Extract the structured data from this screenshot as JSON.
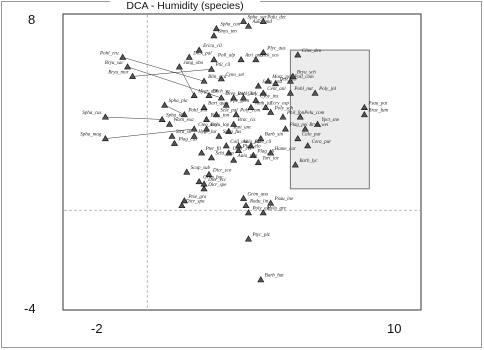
{
  "chart_data": {
    "type": "scatter",
    "title": "DCA - Humidity (species)",
    "xlabel": "",
    "ylabel": "",
    "xlim": [
      -2,
      10
    ],
    "ylim": [
      -4,
      8
    ],
    "x_ticks": [
      "-2",
      "10"
    ],
    "y_ticks": [
      "8",
      "-4"
    ],
    "reference_lines": {
      "x": 0,
      "y": 0
    },
    "highlight_box": {
      "x": [
        5.8,
        9.0
      ],
      "y": [
        0.9,
        6.7
      ]
    },
    "colors": {
      "marker_fill": "#555555",
      "marker_stroke": "#111111",
      "box_fill": "#ececec",
      "box_stroke": "#777777",
      "ref_line": "#bdbdbd"
    },
    "points": [
      {
        "name": "Spha_sqr",
        "x": 3.9,
        "y": 7.9
      },
      {
        "name": "Palu_dec",
        "x": 4.7,
        "y": 7.9
      },
      {
        "name": "Aula_and",
        "x": 4.1,
        "y": 7.7
      },
      {
        "name": "Spha_con",
        "x": 2.8,
        "y": 7.6
      },
      {
        "name": "Onys_ten",
        "x": 2.7,
        "y": 7.3
      },
      {
        "name": "Erica_cil",
        "x": 2.1,
        "y": 6.7
      },
      {
        "name": "Plyc_aus",
        "x": 4.7,
        "y": 6.6
      },
      {
        "name": "Clim_den",
        "x": 6.1,
        "y": 6.5
      },
      {
        "name": "Dick_pal",
        "x": 1.7,
        "y": 6.4
      },
      {
        "name": "Poll_alp",
        "x": 2.7,
        "y": 6.3
      },
      {
        "name": "Atri_und",
        "x": 3.8,
        "y": 6.3
      },
      {
        "name": "Dick_sco",
        "x": 4.4,
        "y": 6.3
      },
      {
        "name": "Pohl_cru",
        "x": -1.0,
        "y": 6.4
      },
      {
        "name": "Bryu_sac",
        "x": -0.8,
        "y": 6.0
      },
      {
        "name": "Bryu_mor",
        "x": -0.6,
        "y": 5.6
      },
      {
        "name": "Jung_obo",
        "x": 1.3,
        "y": 6.0
      },
      {
        "name": "Ptil_cil",
        "x": 2.6,
        "y": 5.9
      },
      {
        "name": "Bryu_sch",
        "x": 5.9,
        "y": 5.6
      },
      {
        "name": "Blin_acu",
        "x": 2.3,
        "y": 5.4
      },
      {
        "name": "Cyno_set",
        "x": 3.0,
        "y": 5.5
      },
      {
        "name": "Marc_pol",
        "x": 4.9,
        "y": 5.4
      },
      {
        "name": "Dist_hor",
        "x": 5.2,
        "y": 5.3
      },
      {
        "name": "Poll_com",
        "x": 5.8,
        "y": 5.4
      },
      {
        "name": "Scap_und",
        "x": 4.5,
        "y": 5.2
      },
      {
        "name": "Cent_anl",
        "x": 4.7,
        "y": 4.9
      },
      {
        "name": "Pohl_nut",
        "x": 5.8,
        "y": 4.9
      },
      {
        "name": "Poly_jnl",
        "x": 6.8,
        "y": 4.9
      },
      {
        "name": "Hygr_dal",
        "x": 1.9,
        "y": 4.8
      },
      {
        "name": "Dich_sp",
        "x": 2.5,
        "y": 4.8
      },
      {
        "name": "Drep_unc",
        "x": 3.0,
        "y": 4.7
      },
      {
        "name": "Pohl_dal",
        "x": 3.5,
        "y": 4.7
      },
      {
        "name": "Chry_cos",
        "x": 3.9,
        "y": 4.7
      },
      {
        "name": "Cyoy_ins",
        "x": 4.4,
        "y": 4.6
      },
      {
        "name": "Spha_pla",
        "x": 0.7,
        "y": 4.4
      },
      {
        "name": "Bart_ques",
        "x": 2.3,
        "y": 4.3
      },
      {
        "name": "Ppe_gom",
        "x": 3.2,
        "y": 4.4
      },
      {
        "name": "Anth_jul",
        "x": 4.2,
        "y": 4.3
      },
      {
        "name": "Ccry_osp",
        "x": 4.8,
        "y": 4.3
      },
      {
        "name": "Poly_sch",
        "x": 5.0,
        "y": 4.1
      },
      {
        "name": "Psau_pat",
        "x": 8.8,
        "y": 4.3
      },
      {
        "name": "Bruc_fum",
        "x": 8.8,
        "y": 4.0
      },
      {
        "name": "Spha_cus",
        "x": -1.7,
        "y": 3.9
      },
      {
        "name": "Pohl_sim",
        "x": 1.5,
        "y": 4.0
      },
      {
        "name": "Scle_pal",
        "x": 2.8,
        "y": 4.0
      },
      {
        "name": "Poly_com",
        "x": 3.6,
        "y": 4.0
      },
      {
        "name": "Spha_ten",
        "x": 0.6,
        "y": 3.8
      },
      {
        "name": "Warn_exa",
        "x": 0.9,
        "y": 3.6
      },
      {
        "name": "Bryu_ton",
        "x": 2.4,
        "y": 3.8
      },
      {
        "name": "Bruc_cis",
        "x": 3.5,
        "y": 3.6
      },
      {
        "name": "Phil_fon",
        "x": 5.5,
        "y": 3.9
      },
      {
        "name": "Pelu_com",
        "x": 6.2,
        "y": 3.9
      },
      {
        "name": "Ypct_sne",
        "x": 6.9,
        "y": 3.6
      },
      {
        "name": "Cteo_mol",
        "x": 1.9,
        "y": 3.4
      },
      {
        "name": "Bryu_lop",
        "x": 2.4,
        "y": 3.4
      },
      {
        "name": "Sani_unc",
        "x": 3.3,
        "y": 3.3
      },
      {
        "name": "Plag_pei",
        "x": 5.6,
        "y": 3.4
      },
      {
        "name": "Bryu_wei",
        "x": 6.4,
        "y": 3.4
      },
      {
        "name": "Spha_mag",
        "x": -1.7,
        "y": 3.0
      },
      {
        "name": "Stra_str",
        "x": 1.0,
        "y": 3.1
      },
      {
        "name": "Hygr_lur",
        "x": 1.9,
        "y": 3.1
      },
      {
        "name": "Spha_fus",
        "x": 2.9,
        "y": 3.1
      },
      {
        "name": "Plag_cus",
        "x": 1.1,
        "y": 2.8
      },
      {
        "name": "Barb_sin",
        "x": 4.6,
        "y": 3.0
      },
      {
        "name": "Calo_pur",
        "x": 6.1,
        "y": 3.0
      },
      {
        "name": "Coll_cal",
        "x": 3.2,
        "y": 2.7
      },
      {
        "name": "Aula_pal",
        "x": 3.7,
        "y": 2.7
      },
      {
        "name": "Bart_cil",
        "x": 4.2,
        "y": 2.7
      },
      {
        "name": "Cera_pur",
        "x": 6.5,
        "y": 2.7
      },
      {
        "name": "Pter_fil",
        "x": 2.2,
        "y": 2.4
      },
      {
        "name": "Uper_cer",
        "x": 3.3,
        "y": 2.4
      },
      {
        "name": "Plag_elo",
        "x": 3.7,
        "y": 2.5
      },
      {
        "name": "Plag_ell",
        "x": 4.3,
        "y": 2.3
      },
      {
        "name": "Hame_cur",
        "x": 5.0,
        "y": 2.4
      },
      {
        "name": "Schi_apo",
        "x": 2.6,
        "y": 2.2
      },
      {
        "name": "Aula_pup",
        "x": 3.5,
        "y": 2.1
      },
      {
        "name": "Tort_tor",
        "x": 4.5,
        "y": 2.0
      },
      {
        "name": "Barb_lyc",
        "x": 6.0,
        "y": 1.9
      },
      {
        "name": "Scap_sub",
        "x": 1.6,
        "y": 1.6
      },
      {
        "name": "Dicr_sco",
        "x": 2.5,
        "y": 1.5
      },
      {
        "name": "Grim_bac",
        "x": 2.1,
        "y": 1.2
      },
      {
        "name": "Dicr_ecc",
        "x": 2.3,
        "y": 1.1
      },
      {
        "name": "Dicr_spe",
        "x": 2.3,
        "y": 0.9
      },
      {
        "name": "Ptse_gra",
        "x": 1.5,
        "y": 0.4
      },
      {
        "name": "Dicr_spa",
        "x": 1.4,
        "y": 0.2
      },
      {
        "name": "Grim_ano",
        "x": 3.9,
        "y": 0.5
      },
      {
        "name": "Radu_lin",
        "x": 4.0,
        "y": 0.2
      },
      {
        "name": "Psau_ine",
        "x": 5.0,
        "y": 0.3
      },
      {
        "name": "Poly_alp",
        "x": 4.1,
        "y": -0.1
      },
      {
        "name": "Hylo_gre",
        "x": 4.7,
        "y": -0.1
      },
      {
        "name": "Ptyc_plz",
        "x": 4.1,
        "y": -1.2
      },
      {
        "name": "Barb_hat",
        "x": 4.6,
        "y": -2.9
      }
    ]
  }
}
